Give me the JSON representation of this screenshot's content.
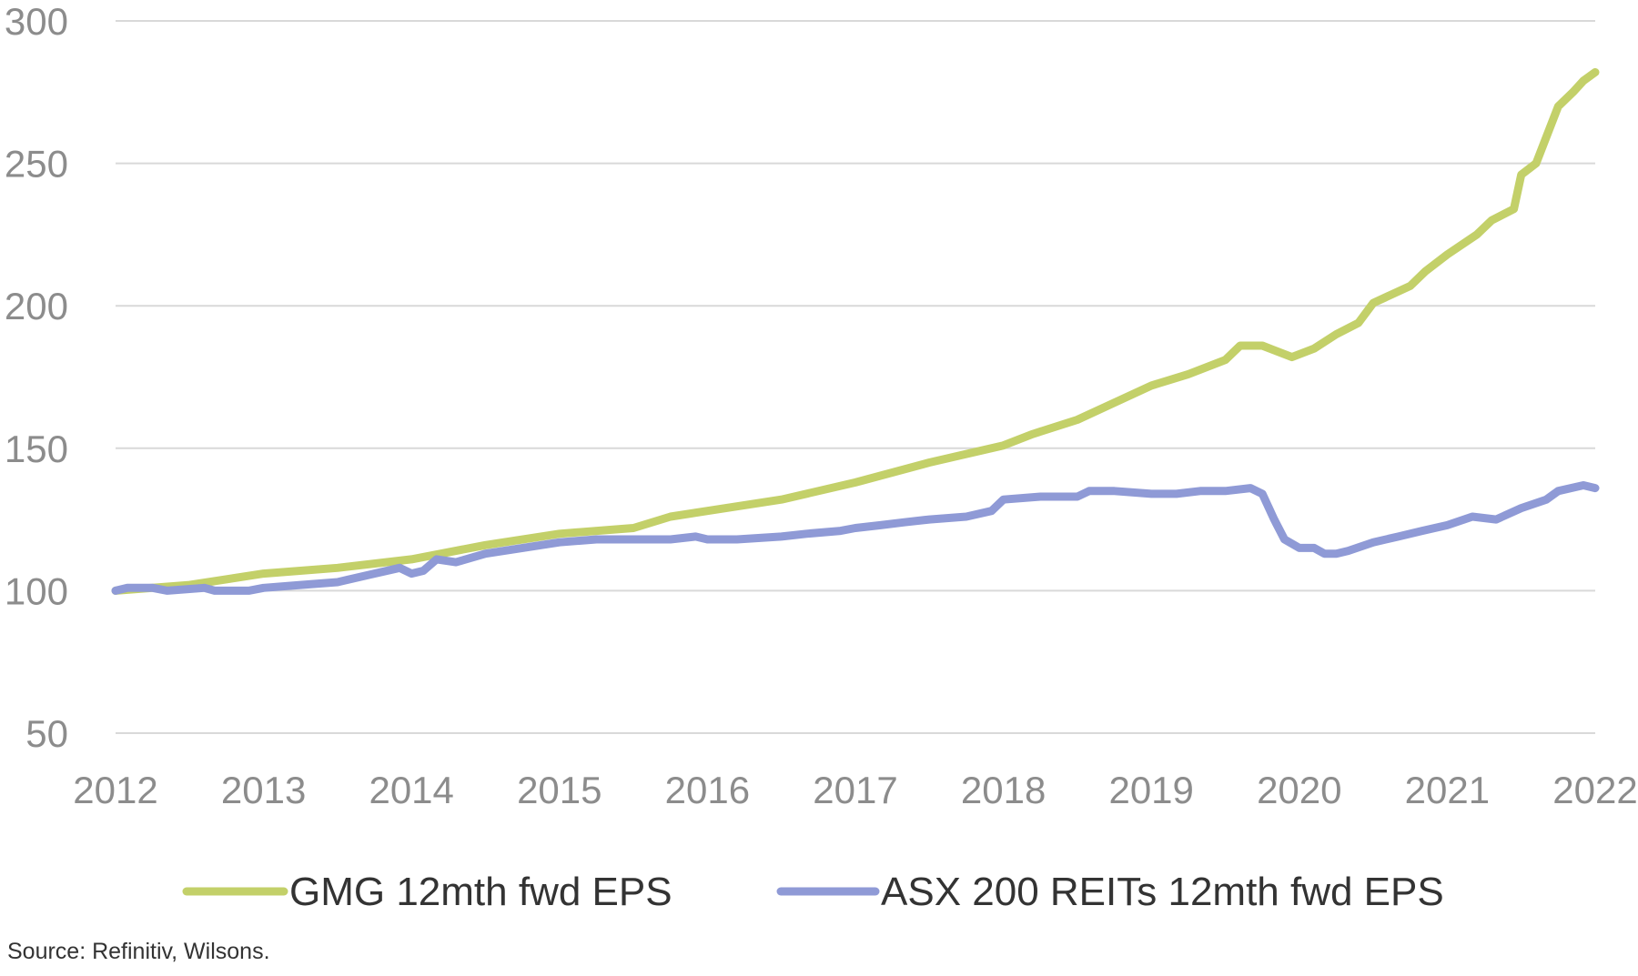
{
  "chart_data": {
    "type": "line",
    "title": "",
    "xlabel": "",
    "ylabel": "",
    "ylim": [
      50,
      300
    ],
    "xlim": [
      2012,
      2022
    ],
    "y_ticks": [
      "50",
      "100",
      "150",
      "200",
      "250",
      "300"
    ],
    "x_ticks": [
      "2012",
      "2013",
      "2014",
      "2015",
      "2016",
      "2017",
      "2018",
      "2019",
      "2020",
      "2021",
      "2022"
    ],
    "grid": "horizontal",
    "legend_position": "bottom",
    "series": [
      {
        "name": "GMG 12mth fwd EPS",
        "color": "#c3d069",
        "points": [
          [
            2012.0,
            100
          ],
          [
            2012.5,
            102
          ],
          [
            2013.0,
            106
          ],
          [
            2013.5,
            108
          ],
          [
            2014.0,
            111
          ],
          [
            2014.5,
            116
          ],
          [
            2015.0,
            120
          ],
          [
            2015.5,
            122
          ],
          [
            2015.75,
            126
          ],
          [
            2016.0,
            128
          ],
          [
            2016.5,
            132
          ],
          [
            2017.0,
            138
          ],
          [
            2017.5,
            145
          ],
          [
            2017.75,
            148
          ],
          [
            2018.0,
            151
          ],
          [
            2018.2,
            155
          ],
          [
            2018.5,
            160
          ],
          [
            2018.75,
            166
          ],
          [
            2019.0,
            172
          ],
          [
            2019.25,
            176
          ],
          [
            2019.5,
            181
          ],
          [
            2019.6,
            186
          ],
          [
            2019.75,
            186
          ],
          [
            2019.95,
            182
          ],
          [
            2020.1,
            185
          ],
          [
            2020.25,
            190
          ],
          [
            2020.4,
            194
          ],
          [
            2020.5,
            201
          ],
          [
            2020.75,
            207
          ],
          [
            2020.85,
            212
          ],
          [
            2021.0,
            218
          ],
          [
            2021.2,
            225
          ],
          [
            2021.3,
            230
          ],
          [
            2021.45,
            234
          ],
          [
            2021.5,
            246
          ],
          [
            2021.6,
            250
          ],
          [
            2021.75,
            270
          ],
          [
            2021.85,
            275
          ],
          [
            2021.92,
            279
          ],
          [
            2022.0,
            282
          ]
        ]
      },
      {
        "name": "ASX 200 REITs 12mth fwd EPS",
        "color": "#8f9ad6",
        "points": [
          [
            2012.0,
            100
          ],
          [
            2012.08,
            101
          ],
          [
            2012.25,
            101
          ],
          [
            2012.35,
            100
          ],
          [
            2012.6,
            101
          ],
          [
            2012.67,
            100
          ],
          [
            2012.9,
            100
          ],
          [
            2013.0,
            101
          ],
          [
            2013.25,
            102
          ],
          [
            2013.5,
            103
          ],
          [
            2013.75,
            106
          ],
          [
            2013.92,
            108
          ],
          [
            2014.0,
            106
          ],
          [
            2014.08,
            107
          ],
          [
            2014.17,
            111
          ],
          [
            2014.3,
            110
          ],
          [
            2014.5,
            113
          ],
          [
            2014.75,
            115
          ],
          [
            2015.0,
            117
          ],
          [
            2015.25,
            118
          ],
          [
            2015.5,
            118
          ],
          [
            2015.75,
            118
          ],
          [
            2015.92,
            119
          ],
          [
            2016.0,
            118
          ],
          [
            2016.2,
            118
          ],
          [
            2016.5,
            119
          ],
          [
            2016.67,
            120
          ],
          [
            2016.9,
            121
          ],
          [
            2017.0,
            122
          ],
          [
            2017.17,
            123
          ],
          [
            2017.33,
            124
          ],
          [
            2017.5,
            125
          ],
          [
            2017.75,
            126
          ],
          [
            2017.92,
            128
          ],
          [
            2018.0,
            132
          ],
          [
            2018.25,
            133
          ],
          [
            2018.5,
            133
          ],
          [
            2018.58,
            135
          ],
          [
            2018.75,
            135
          ],
          [
            2019.0,
            134
          ],
          [
            2019.17,
            134
          ],
          [
            2019.33,
            135
          ],
          [
            2019.5,
            135
          ],
          [
            2019.67,
            136
          ],
          [
            2019.75,
            134
          ],
          [
            2019.83,
            125
          ],
          [
            2019.9,
            118
          ],
          [
            2020.0,
            115
          ],
          [
            2020.1,
            115
          ],
          [
            2020.17,
            113
          ],
          [
            2020.25,
            113
          ],
          [
            2020.33,
            114
          ],
          [
            2020.5,
            117
          ],
          [
            2020.67,
            119
          ],
          [
            2020.83,
            121
          ],
          [
            2021.0,
            123
          ],
          [
            2021.17,
            126
          ],
          [
            2021.33,
            125
          ],
          [
            2021.5,
            129
          ],
          [
            2021.67,
            132
          ],
          [
            2021.75,
            135
          ],
          [
            2021.92,
            137
          ],
          [
            2022.0,
            136
          ]
        ]
      }
    ]
  },
  "source": "Source: Refinitiv, Wilsons."
}
